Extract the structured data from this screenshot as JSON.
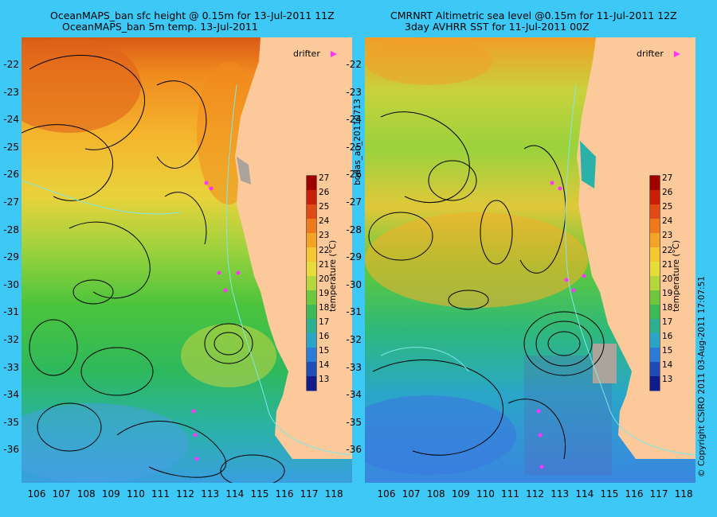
{
  "left_panel": {
    "title_line1": "OceanMAPS_ban sfc height @ 0.15m for 13-Jul-2011 11Z",
    "title_line2": "OceanMAPS_ban 5m temp. 13-Jul-2011"
  },
  "right_panel": {
    "title_line1": "CMRNRT Altimetric sea level  @0.15m  for 11-Jul-2011 12Z",
    "title_line2": "3day AVHRR SST for 11-Jul-2011 00Z"
  },
  "legend": {
    "drifter_label": "drifter",
    "drifter_color": "#ff33ff"
  },
  "colorbar": {
    "ticks": [
      "27",
      "26",
      "25",
      "24",
      "23",
      "22",
      "21",
      "20",
      "19",
      "18",
      "17",
      "16",
      "15",
      "14",
      "13"
    ],
    "unit_label": "temperature (°C)"
  },
  "axes": {
    "lat_labels": [
      "-22",
      "-23",
      "-24",
      "-25",
      "-26",
      "-27",
      "-28",
      "-29",
      "-30",
      "-31",
      "-32",
      "-33",
      "-34",
      "-35",
      "-36"
    ],
    "lon_labels": [
      "106",
      "107",
      "108",
      "109",
      "110",
      "111",
      "112",
      "113",
      "114",
      "115",
      "116",
      "117",
      "118"
    ]
  },
  "side_texts": {
    "left_vertical": "bodas_an_20110713",
    "right_vertical": "© Copyright CSIRO 2011   03-Aug-2011 17:07:51"
  },
  "colors": {
    "background": "#3ec8f5",
    "land": "#fcc99b",
    "gulf_grey": "#aaa49c"
  }
}
